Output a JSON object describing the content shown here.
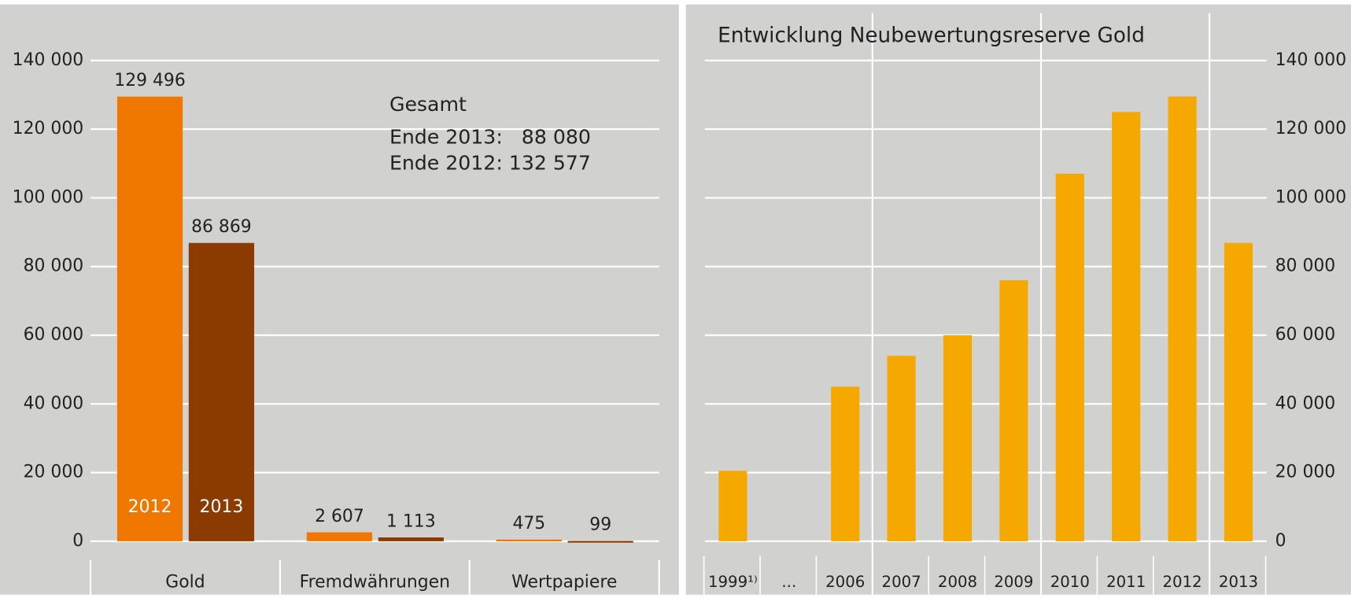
{
  "chart_data": [
    {
      "type": "bar",
      "categories": [
        "Gold",
        "Fremdwährungen",
        "Wertpapiere"
      ],
      "series": [
        {
          "name": "2012",
          "color": "#f07800",
          "values": [
            129496,
            2607,
            475
          ],
          "value_labels": [
            "129 496",
            "2 607",
            "475"
          ]
        },
        {
          "name": "2013",
          "color": "#8b3a00",
          "values": [
            86869,
            1113,
            99
          ],
          "value_labels": [
            "86 869",
            "1 113",
            "99"
          ]
        }
      ],
      "annotations": [
        "Gesamt",
        "Ende 2013:   88 080",
        "Ende 2012: 132 577"
      ],
      "ylim": [
        0,
        140000
      ],
      "yticks": [
        0,
        {
          "value": 20000,
          "label": "20 000"
        },
        {
          "value": 40000,
          "label": "40 000"
        },
        {
          "value": 60000,
          "label": "60 000"
        },
        {
          "value": 80000,
          "label": "80 000"
        },
        {
          "value": 100000,
          "label": "100 000"
        },
        {
          "value": 120000,
          "label": "120 000"
        },
        {
          "value": 140000,
          "label": "140 000"
        }
      ],
      "grid": true
    },
    {
      "type": "bar",
      "title": "Entwicklung Neubewertungsreserve Gold",
      "categories": [
        "1999¹⁾",
        "...",
        "2006",
        "2007",
        "2008",
        "2009",
        "2010",
        "2011",
        "2012",
        "2013"
      ],
      "values": [
        20500,
        null,
        45000,
        54000,
        60000,
        76000,
        107000,
        125000,
        129496,
        86869
      ],
      "color": "#f5a800",
      "ylim": [
        0,
        140000
      ],
      "yticks": [
        0,
        {
          "value": 20000,
          "label": "20 000"
        },
        {
          "value": 40000,
          "label": "40 000"
        },
        {
          "value": 60000,
          "label": "60 000"
        },
        {
          "value": 80000,
          "label": "80 000"
        },
        {
          "value": 100000,
          "label": "100 000"
        },
        {
          "value": 120000,
          "label": "120 000"
        },
        {
          "value": 140000,
          "label": "140 000"
        }
      ],
      "grid": true,
      "y_axis_side": "right"
    }
  ]
}
